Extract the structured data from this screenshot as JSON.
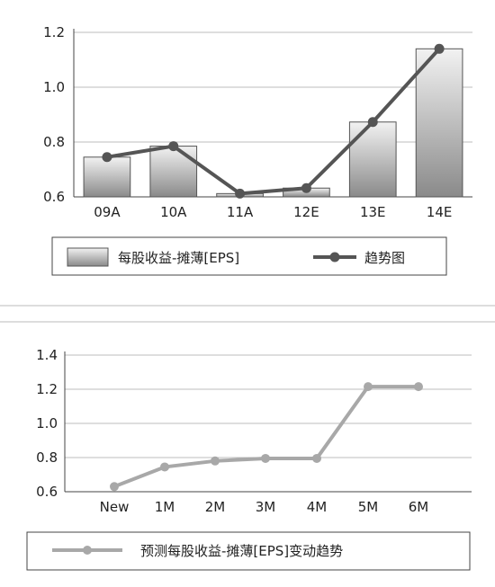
{
  "chart_data": [
    {
      "type": "bar",
      "categories": [
        "09A",
        "10A",
        "11A",
        "12E",
        "13E",
        "14E"
      ],
      "series": [
        {
          "name": "每股收益-摊薄[EPS]",
          "type": "bar",
          "values": [
            0.745,
            0.785,
            0.612,
            0.632,
            0.873,
            1.14
          ]
        },
        {
          "name": "趋势图",
          "type": "line",
          "values": [
            0.745,
            0.785,
            0.612,
            0.632,
            0.873,
            1.14
          ]
        }
      ],
      "ylim": [
        0.6,
        1.2
      ],
      "yticks": [
        0.6,
        0.8,
        1.0,
        1.2
      ],
      "ytick_labels": [
        "0.6",
        "0.8",
        "1.0",
        "1.2"
      ],
      "grid": true,
      "legend": "bottom",
      "colors": {
        "bar_top": "#f2f2f2",
        "bar_bottom": "#8a8a8a",
        "bar_edge": "#555555",
        "line": "#555555"
      }
    },
    {
      "type": "line",
      "categories": [
        "New",
        "1M",
        "2M",
        "3M",
        "4M",
        "5M",
        "6M"
      ],
      "series": [
        {
          "name": "预测每股收益-摊薄[EPS]变动趋势",
          "values": [
            0.63,
            0.745,
            0.78,
            0.795,
            0.795,
            1.215,
            1.215
          ]
        }
      ],
      "ylim": [
        0.6,
        1.4
      ],
      "yticks": [
        0.6,
        0.8,
        1.0,
        1.2,
        1.4
      ],
      "ytick_labels": [
        "0.6",
        "0.8",
        "1.0",
        "1.2",
        "1.4"
      ],
      "grid": true,
      "legend": "bottom",
      "colors": {
        "line": "#a8a8a8"
      }
    }
  ]
}
